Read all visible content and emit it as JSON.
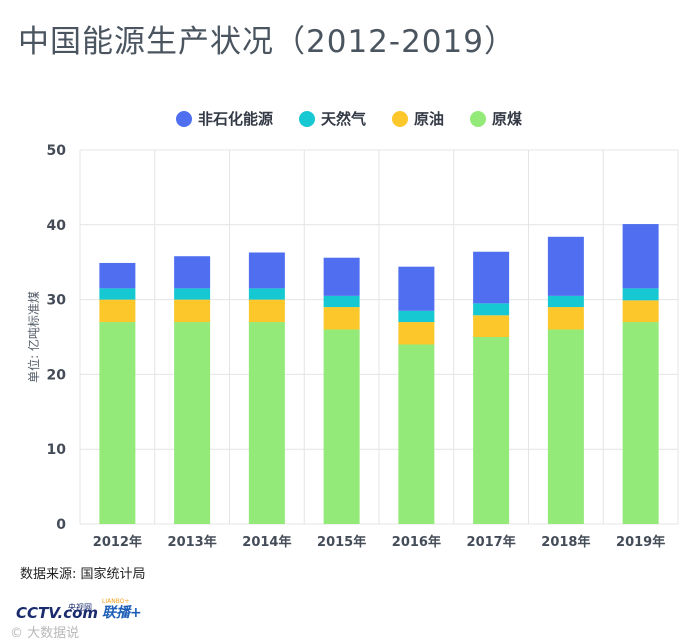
{
  "title": "中国能源生产状况（2012-2019）",
  "source": "数据来源: 国家统计局",
  "logos": {
    "cctv": "CCTV.com",
    "cctv_sub": "央视网",
    "lianbo": "联播+",
    "lianbo_sub": "LIANBO+"
  },
  "watermark": "© 大数据说",
  "colors": {
    "non_fossil": "#4f6ff0",
    "natural_gas": "#16c8d2",
    "crude_oil": "#fcc72a",
    "coal": "#93ea79"
  },
  "chart_data": {
    "type": "bar",
    "stacked": true,
    "categories": [
      "2012年",
      "2013年",
      "2014年",
      "2015年",
      "2016年",
      "2017年",
      "2018年",
      "2019年"
    ],
    "series": [
      {
        "name": "原煤",
        "color": "#93ea79",
        "values": [
          27.0,
          27.0,
          27.0,
          26.0,
          24.0,
          25.0,
          26.0,
          27.0
        ]
      },
      {
        "name": "原油",
        "color": "#fcc72a",
        "values": [
          3.0,
          3.0,
          3.0,
          3.0,
          3.0,
          2.9,
          3.0,
          2.9
        ]
      },
      {
        "name": "天然气",
        "color": "#16c8d2",
        "values": [
          1.5,
          1.5,
          1.5,
          1.5,
          1.5,
          1.6,
          1.5,
          1.6
        ]
      },
      {
        "name": "非石化能源",
        "color": "#4f6ff0",
        "values": [
          3.4,
          4.3,
          4.8,
          5.1,
          5.9,
          6.9,
          7.9,
          8.6
        ]
      }
    ],
    "legend_order": [
      "非石化能源",
      "天然气",
      "原油",
      "原煤"
    ],
    "ylabel": "单位: 亿吨标准煤",
    "xlabel": "",
    "ylim": [
      0,
      50
    ],
    "yticks": [
      0,
      10,
      20,
      30,
      40,
      50
    ],
    "grid": true,
    "legend_position": "top-center"
  }
}
